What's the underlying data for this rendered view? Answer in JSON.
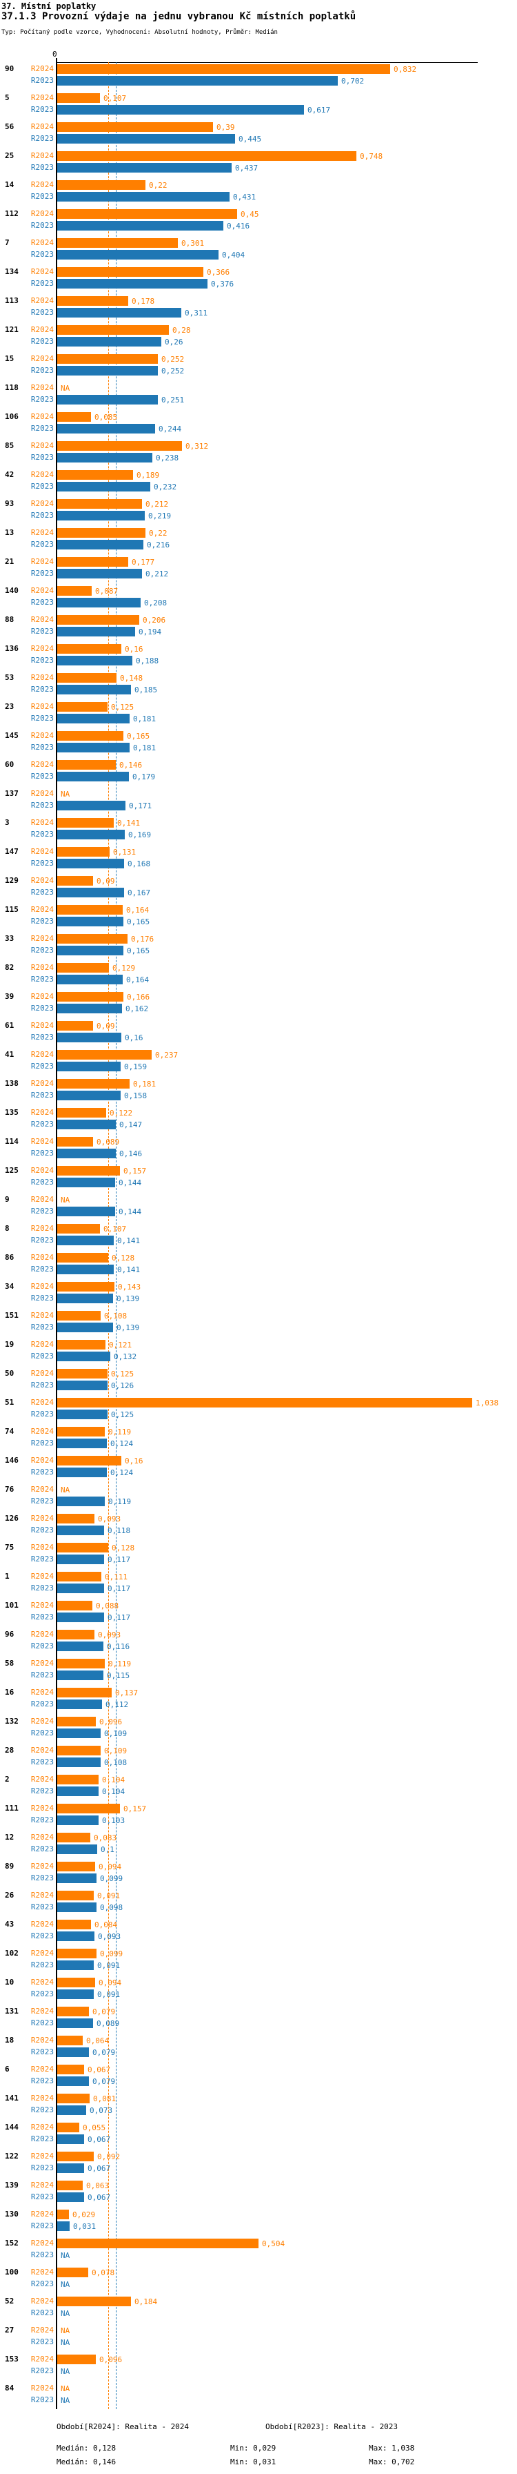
{
  "header": {
    "title": "37. Místní poplatky",
    "subtitle": "37.1.3 Provozní výdaje na jednu vybranou Kč místních poplatků",
    "meta": "Typ: Počítaný podle vzorce, Vyhodnocení: Absolutní hodnoty, Průměr: Medián"
  },
  "colors": {
    "r2024_orange": "#ff7f00",
    "r2023_blue": "#1f77b4",
    "axis_black": "#000000",
    "id_label_black": "#000000"
  },
  "chart_data": {
    "type": "bar",
    "orientation": "horizontal",
    "title": "37.1.3 Provozní výdaje na jednu vybranou Kč místních poplatků",
    "x_axis": {
      "zero_label": "0",
      "range_hint": [
        0,
        1.05
      ],
      "gridlines": false
    },
    "na_label": "NA",
    "decimal_separator": ",",
    "series": [
      {
        "name": "R2024",
        "period": "Realita - 2024",
        "color": "#ff7f00",
        "median": 0.128,
        "min": 0.029,
        "max": 1.038
      },
      {
        "name": "R2023",
        "period": "Realita - 2023",
        "color": "#1f77b4",
        "median": 0.146,
        "min": 0.031,
        "max": 0.702
      }
    ],
    "median_lines": {
      "style": "dashed",
      "R2024": 0.128,
      "R2023": 0.146
    },
    "rows": [
      {
        "id": "90",
        "R2024": "0,832",
        "R2023": "0,702"
      },
      {
        "id": "5",
        "R2024": "0,107",
        "R2023": "0,617"
      },
      {
        "id": "56",
        "R2024": "0,39",
        "R2023": "0,445"
      },
      {
        "id": "25",
        "R2024": "0,748",
        "R2023": "0,437"
      },
      {
        "id": "14",
        "R2024": "0,22",
        "R2023": "0,431"
      },
      {
        "id": "112",
        "R2024": "0,45",
        "R2023": "0,416"
      },
      {
        "id": "7",
        "R2024": "0,301",
        "R2023": "0,404"
      },
      {
        "id": "134",
        "R2024": "0,366",
        "R2023": "0,376"
      },
      {
        "id": "113",
        "R2024": "0,178",
        "R2023": "0,311"
      },
      {
        "id": "121",
        "R2024": "0,28",
        "R2023": "0,26"
      },
      {
        "id": "15",
        "R2024": "0,252",
        "R2023": "0,252"
      },
      {
        "id": "118",
        "R2024": "NA",
        "R2023": "0,251"
      },
      {
        "id": "106",
        "R2024": "0,085",
        "R2023": "0,244"
      },
      {
        "id": "85",
        "R2024": "0,312",
        "R2023": "0,238"
      },
      {
        "id": "42",
        "R2024": "0,189",
        "R2023": "0,232"
      },
      {
        "id": "93",
        "R2024": "0,212",
        "R2023": "0,219"
      },
      {
        "id": "13",
        "R2024": "0,22",
        "R2023": "0,216"
      },
      {
        "id": "21",
        "R2024": "0,177",
        "R2023": "0,212"
      },
      {
        "id": "140",
        "R2024": "0,087",
        "R2023": "0,208"
      },
      {
        "id": "88",
        "R2024": "0,206",
        "R2023": "0,194"
      },
      {
        "id": "136",
        "R2024": "0,16",
        "R2023": "0,188"
      },
      {
        "id": "53",
        "R2024": "0,148",
        "R2023": "0,185"
      },
      {
        "id": "23",
        "R2024": "0,125",
        "R2023": "0,181"
      },
      {
        "id": "145",
        "R2024": "0,165",
        "R2023": "0,181"
      },
      {
        "id": "60",
        "R2024": "0,146",
        "R2023": "0,179"
      },
      {
        "id": "137",
        "R2024": "NA",
        "R2023": "0,171"
      },
      {
        "id": "3",
        "R2024": "0,141",
        "R2023": "0,169"
      },
      {
        "id": "147",
        "R2024": "0,131",
        "R2023": "0,168"
      },
      {
        "id": "129",
        "R2024": "0,09",
        "R2023": "0,167"
      },
      {
        "id": "115",
        "R2024": "0,164",
        "R2023": "0,165"
      },
      {
        "id": "33",
        "R2024": "0,176",
        "R2023": "0,165"
      },
      {
        "id": "82",
        "R2024": "0,129",
        "R2023": "0,164"
      },
      {
        "id": "39",
        "R2024": "0,166",
        "R2023": "0,162"
      },
      {
        "id": "61",
        "R2024": "0,09",
        "R2023": "0,16"
      },
      {
        "id": "41",
        "R2024": "0,237",
        "R2023": "0,159"
      },
      {
        "id": "138",
        "R2024": "0,181",
        "R2023": "0,158"
      },
      {
        "id": "135",
        "R2024": "0,122",
        "R2023": "0,147"
      },
      {
        "id": "114",
        "R2024": "0,089",
        "R2023": "0,146"
      },
      {
        "id": "125",
        "R2024": "0,157",
        "R2023": "0,144"
      },
      {
        "id": "9",
        "R2024": "NA",
        "R2023": "0,144"
      },
      {
        "id": "8",
        "R2024": "0,107",
        "R2023": "0,141"
      },
      {
        "id": "86",
        "R2024": "0,128",
        "R2023": "0,141"
      },
      {
        "id": "34",
        "R2024": "0,143",
        "R2023": "0,139"
      },
      {
        "id": "151",
        "R2024": "0,108",
        "R2023": "0,139"
      },
      {
        "id": "19",
        "R2024": "0,121",
        "R2023": "0,132"
      },
      {
        "id": "50",
        "R2024": "0,125",
        "R2023": "0,126"
      },
      {
        "id": "51",
        "R2024": "1,038",
        "R2023": "0,125"
      },
      {
        "id": "74",
        "R2024": "0,119",
        "R2023": "0,124"
      },
      {
        "id": "146",
        "R2024": "0,16",
        "R2023": "0,124"
      },
      {
        "id": "76",
        "R2024": "NA",
        "R2023": "0,119"
      },
      {
        "id": "126",
        "R2024": "0,093",
        "R2023": "0,118"
      },
      {
        "id": "75",
        "R2024": "0,128",
        "R2023": "0,117"
      },
      {
        "id": "1",
        "R2024": "0,111",
        "R2023": "0,117"
      },
      {
        "id": "101",
        "R2024": "0,088",
        "R2023": "0,117"
      },
      {
        "id": "96",
        "R2024": "0,093",
        "R2023": "0,116"
      },
      {
        "id": "58",
        "R2024": "0,119",
        "R2023": "0,115"
      },
      {
        "id": "16",
        "R2024": "0,137",
        "R2023": "0,112"
      },
      {
        "id": "132",
        "R2024": "0,096",
        "R2023": "0,109"
      },
      {
        "id": "28",
        "R2024": "0,109",
        "R2023": "0,108"
      },
      {
        "id": "2",
        "R2024": "0,104",
        "R2023": "0,104"
      },
      {
        "id": "111",
        "R2024": "0,157",
        "R2023": "0,103"
      },
      {
        "id": "12",
        "R2024": "0,083",
        "R2023": "0,1"
      },
      {
        "id": "89",
        "R2024": "0,094",
        "R2023": "0,099"
      },
      {
        "id": "26",
        "R2024": "0,091",
        "R2023": "0,098"
      },
      {
        "id": "43",
        "R2024": "0,084",
        "R2023": "0,093"
      },
      {
        "id": "102",
        "R2024": "0,099",
        "R2023": "0,091"
      },
      {
        "id": "10",
        "R2024": "0,094",
        "R2023": "0,091"
      },
      {
        "id": "131",
        "R2024": "0,079",
        "R2023": "0,089"
      },
      {
        "id": "18",
        "R2024": "0,064",
        "R2023": "0,079"
      },
      {
        "id": "6",
        "R2024": "0,067",
        "R2023": "0,079"
      },
      {
        "id": "141",
        "R2024": "0,081",
        "R2023": "0,073"
      },
      {
        "id": "144",
        "R2024": "0,055",
        "R2023": "0,067"
      },
      {
        "id": "122",
        "R2024": "0,092",
        "R2023": "0,067"
      },
      {
        "id": "139",
        "R2024": "0,063",
        "R2023": "0,067"
      },
      {
        "id": "130",
        "R2024": "0,029",
        "R2023": "0,031"
      },
      {
        "id": "152",
        "R2024": "0,504",
        "R2023": "NA"
      },
      {
        "id": "100",
        "R2024": "0,078",
        "R2023": "NA"
      },
      {
        "id": "52",
        "R2024": "0,184",
        "R2023": "NA"
      },
      {
        "id": "27",
        "R2024": "NA",
        "R2023": "NA"
      },
      {
        "id": "153",
        "R2024": "0,096",
        "R2023": "NA"
      },
      {
        "id": "84",
        "R2024": "NA",
        "R2023": "NA"
      }
    ]
  },
  "legend": {
    "r2024_period": "Období[R2024]: Realita - 2024",
    "r2023_period": "Období[R2023]: Realita - 2023",
    "r2024_stats": {
      "median": "Medián: 0,128",
      "min": "Min: 0,029",
      "max": "Max: 1,038"
    },
    "r2023_stats": {
      "median": "Medián: 0,146",
      "min": "Min: 0,031",
      "max": "Max: 0,702"
    }
  }
}
